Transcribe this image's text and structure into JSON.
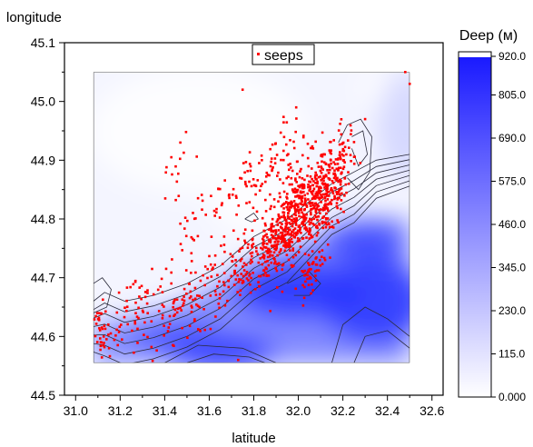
{
  "chart_data": {
    "type": "contour-scatter",
    "xlabel": "latitude",
    "ylabel": "longitude",
    "xlim": [
      30.95,
      32.65
    ],
    "ylim": [
      44.5,
      45.1
    ],
    "x_ticks": [
      "31.0",
      "31.2",
      "31.4",
      "31.6",
      "31.8",
      "32.0",
      "32.2",
      "32.4",
      "32.6"
    ],
    "y_ticks": [
      "44.5",
      "44.6",
      "44.7",
      "44.8",
      "44.9",
      "45.0",
      "45.1"
    ],
    "grid": false,
    "legend": {
      "placement": "top-center",
      "entries": [
        {
          "name": "seeps",
          "color": "#ff0000",
          "marker": "square"
        }
      ]
    },
    "contour_extent": {
      "x": [
        31.08,
        32.5
      ],
      "y": [
        44.555,
        45.05
      ]
    },
    "colorbar": {
      "title": "Deep (м)",
      "ticks": [
        "920.0",
        "805.0",
        "690.0",
        "575.0",
        "460.0",
        "345.0",
        "230.0",
        "115.0",
        "0.000"
      ],
      "range": [
        0,
        920
      ],
      "color_low": "#ffffff",
      "color_high": "#1a1aff"
    },
    "seep_clusters": [
      {
        "cx": 32.0,
        "cy": 44.82,
        "sx": 0.07,
        "sy": 0.035,
        "n": 320
      },
      {
        "cx": 32.13,
        "cy": 44.84,
        "sx": 0.05,
        "sy": 0.035,
        "n": 200
      },
      {
        "cx": 31.92,
        "cy": 44.76,
        "sx": 0.08,
        "sy": 0.025,
        "n": 170
      },
      {
        "cx": 31.75,
        "cy": 44.72,
        "sx": 0.1,
        "sy": 0.03,
        "n": 120
      },
      {
        "cx": 31.85,
        "cy": 44.88,
        "sx": 0.1,
        "sy": 0.03,
        "n": 90
      },
      {
        "cx": 31.5,
        "cy": 44.66,
        "sx": 0.1,
        "sy": 0.025,
        "n": 80
      },
      {
        "cx": 31.25,
        "cy": 44.64,
        "sx": 0.08,
        "sy": 0.03,
        "n": 60
      },
      {
        "cx": 31.12,
        "cy": 44.6,
        "sx": 0.03,
        "sy": 0.03,
        "n": 40
      },
      {
        "cx": 32.2,
        "cy": 44.9,
        "sx": 0.03,
        "sy": 0.03,
        "n": 50
      },
      {
        "cx": 32.06,
        "cy": 44.71,
        "sx": 0.03,
        "sy": 0.015,
        "n": 50
      },
      {
        "cx": 31.55,
        "cy": 44.78,
        "sx": 0.08,
        "sy": 0.04,
        "n": 40
      },
      {
        "cx": 31.45,
        "cy": 44.88,
        "sx": 0.04,
        "sy": 0.02,
        "n": 12
      }
    ],
    "seep_points": [
      [
        31.75,
        45.02
      ],
      [
        32.48,
        45.05
      ],
      [
        32.5,
        45.03
      ],
      [
        32.3,
        44.97
      ],
      [
        31.47,
        44.93
      ],
      [
        31.43,
        44.905
      ],
      [
        31.73,
        44.56
      ],
      [
        31.15,
        44.58
      ]
    ]
  }
}
